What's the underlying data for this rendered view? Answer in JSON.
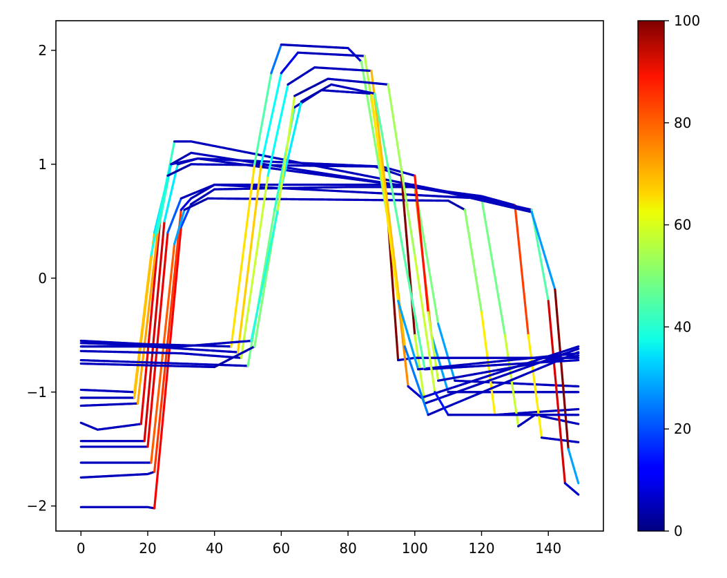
{
  "chart_data": {
    "type": "line",
    "title": "",
    "xlabel": "",
    "ylabel": "",
    "xlim": [
      -7.5,
      156.5
    ],
    "ylim": [
      -2.22,
      2.26
    ],
    "x_ticks": [
      0,
      20,
      40,
      60,
      80,
      100,
      120,
      140
    ],
    "x_tick_labels": [
      "0",
      "20",
      "40",
      "60",
      "80",
      "100",
      "120",
      "140"
    ],
    "y_ticks": [
      -2,
      -1,
      0,
      1,
      2
    ],
    "y_tick_labels": [
      "−2",
      "−1",
      "0",
      "1",
      "2"
    ],
    "grid": false,
    "legend": "none",
    "colormap": "jet",
    "colorbar": {
      "min": 0,
      "max": 100,
      "ticks": [
        0,
        20,
        40,
        60,
        80,
        100
      ],
      "tick_labels": [
        "0",
        "20",
        "40",
        "60",
        "80",
        "100"
      ]
    },
    "series": [
      {
        "values_by_x": [
          [
            0,
            -2.01
          ],
          [
            20,
            -2.01
          ],
          [
            22,
            -2.02
          ],
          [
            30,
            0.45
          ],
          [
            33,
            0.65
          ],
          [
            40,
            0.78
          ],
          [
            80,
            0.8
          ],
          [
            100,
            0.8
          ],
          [
            105,
            -0.5
          ],
          [
            110,
            -1.0
          ],
          [
            149,
            -1.0
          ]
        ]
      },
      {
        "values_by_x": [
          [
            0,
            -1.75
          ],
          [
            20,
            -1.72
          ],
          [
            22,
            -1.7
          ],
          [
            30,
            0.6
          ],
          [
            33,
            0.7
          ],
          [
            40,
            0.82
          ],
          [
            100,
            0.82
          ],
          [
            107,
            -0.4
          ],
          [
            112,
            -0.9
          ],
          [
            149,
            -0.95
          ]
        ]
      },
      {
        "values_by_x": [
          [
            0,
            -1.62
          ],
          [
            21,
            -1.62
          ],
          [
            28,
            0.3
          ],
          [
            31,
            0.6
          ],
          [
            38,
            0.7
          ],
          [
            110,
            0.68
          ],
          [
            115,
            0.6
          ],
          [
            120,
            -0.3
          ],
          [
            124,
            -1.2
          ],
          [
            149,
            -1.15
          ]
        ]
      },
      {
        "values_by_x": [
          [
            0,
            -1.48
          ],
          [
            20,
            -1.48
          ],
          [
            26,
            0.4
          ],
          [
            30,
            0.7
          ],
          [
            40,
            0.82
          ],
          [
            120,
            0.7
          ],
          [
            127,
            -0.5
          ],
          [
            131,
            -1.3
          ],
          [
            136,
            -1.2
          ],
          [
            149,
            -1.28
          ]
        ]
      },
      {
        "values_by_x": [
          [
            0,
            -1.43
          ],
          [
            19,
            -1.43
          ],
          [
            25,
            0.5
          ],
          [
            29,
            1.0
          ],
          [
            35,
            1.05
          ],
          [
            120,
            0.72
          ],
          [
            130,
            0.64
          ],
          [
            134,
            -0.5
          ],
          [
            138,
            -1.4
          ],
          [
            149,
            -1.44
          ]
        ]
      },
      {
        "values_by_x": [
          [
            0,
            -1.27
          ],
          [
            5,
            -1.33
          ],
          [
            18,
            -1.28
          ],
          [
            24,
            0.6
          ],
          [
            28,
            1.2
          ],
          [
            33,
            1.2
          ],
          [
            120,
            0.7
          ],
          [
            135,
            0.6
          ],
          [
            140,
            -0.2
          ],
          [
            145,
            -1.8
          ],
          [
            149,
            -1.9
          ]
        ]
      },
      {
        "values_by_x": [
          [
            0,
            -1.12
          ],
          [
            17,
            -1.1
          ],
          [
            23,
            0.4
          ],
          [
            27,
            1.0
          ],
          [
            33,
            1.1
          ],
          [
            110,
            0.75
          ],
          [
            135,
            0.58
          ],
          [
            142,
            -0.1
          ],
          [
            146,
            -1.5
          ],
          [
            149,
            -1.8
          ]
        ]
      },
      {
        "values_by_x": [
          [
            0,
            -1.05
          ],
          [
            16,
            -1.05
          ],
          [
            22,
            0.4
          ],
          [
            27,
            1.0
          ],
          [
            35,
            1.05
          ],
          [
            90,
            0.98
          ],
          [
            100,
            0.9
          ],
          [
            104,
            -0.3
          ],
          [
            107,
            -0.9
          ],
          [
            149,
            -0.68
          ]
        ]
      },
      {
        "values_by_x": [
          [
            0,
            -0.98
          ],
          [
            16,
            -1.0
          ],
          [
            21,
            0.2
          ],
          [
            26,
            0.9
          ],
          [
            33,
            1.0
          ],
          [
            88,
            0.98
          ],
          [
            96,
            0.9
          ],
          [
            100,
            -0.5
          ],
          [
            103,
            -1.1
          ],
          [
            149,
            -0.62
          ]
        ]
      },
      {
        "values_by_x": [
          [
            0,
            -0.55
          ],
          [
            20,
            -0.58
          ],
          [
            45,
            -0.6
          ],
          [
            52,
            1.0
          ],
          [
            57,
            1.8
          ],
          [
            60,
            2.05
          ],
          [
            80,
            2.02
          ],
          [
            84,
            1.9
          ],
          [
            92,
            0.5
          ],
          [
            95,
            -0.72
          ],
          [
            100,
            -0.7
          ],
          [
            149,
            -0.7
          ]
        ]
      },
      {
        "values_by_x": [
          [
            0,
            -0.6
          ],
          [
            20,
            -0.6
          ],
          [
            47,
            -0.65
          ],
          [
            54,
            1.0
          ],
          [
            60,
            1.8
          ],
          [
            65,
            1.98
          ],
          [
            85,
            1.95
          ],
          [
            92,
            0.6
          ],
          [
            98,
            -0.95
          ],
          [
            102,
            -1.05
          ],
          [
            149,
            -0.6
          ]
        ]
      },
      {
        "values_by_x": [
          [
            0,
            -0.64
          ],
          [
            30,
            -0.66
          ],
          [
            48,
            -0.7
          ],
          [
            56,
            0.9
          ],
          [
            62,
            1.7
          ],
          [
            70,
            1.85
          ],
          [
            87,
            1.82
          ],
          [
            97,
            -0.6
          ],
          [
            104,
            -1.2
          ],
          [
            108,
            -1.15
          ],
          [
            149,
            -0.65
          ]
        ]
      },
      {
        "values_by_x": [
          [
            0,
            -0.72
          ],
          [
            30,
            -0.75
          ],
          [
            50,
            -0.77
          ],
          [
            58,
            0.6
          ],
          [
            64,
            1.5
          ],
          [
            72,
            1.65
          ],
          [
            87,
            1.62
          ],
          [
            95,
            -0.2
          ],
          [
            101,
            -0.8
          ],
          [
            149,
            -0.66
          ]
        ]
      },
      {
        "values_by_x": [
          [
            0,
            -0.75
          ],
          [
            40,
            -0.78
          ],
          [
            52,
            -0.6
          ],
          [
            60,
            0.8
          ],
          [
            66,
            1.55
          ],
          [
            75,
            1.7
          ],
          [
            88,
            1.62
          ],
          [
            98,
            0.0
          ],
          [
            103,
            -0.8
          ],
          [
            149,
            -0.72
          ]
        ]
      },
      {
        "values_by_x": [
          [
            0,
            -0.57
          ],
          [
            30,
            -0.6
          ],
          [
            51,
            -0.55
          ],
          [
            59,
            0.6
          ],
          [
            64,
            1.6
          ],
          [
            74,
            1.75
          ],
          [
            92,
            1.7
          ],
          [
            100,
            0.2
          ],
          [
            106,
            -1.0
          ],
          [
            110,
            -1.2
          ],
          [
            149,
            -1.2
          ]
        ]
      }
    ]
  }
}
